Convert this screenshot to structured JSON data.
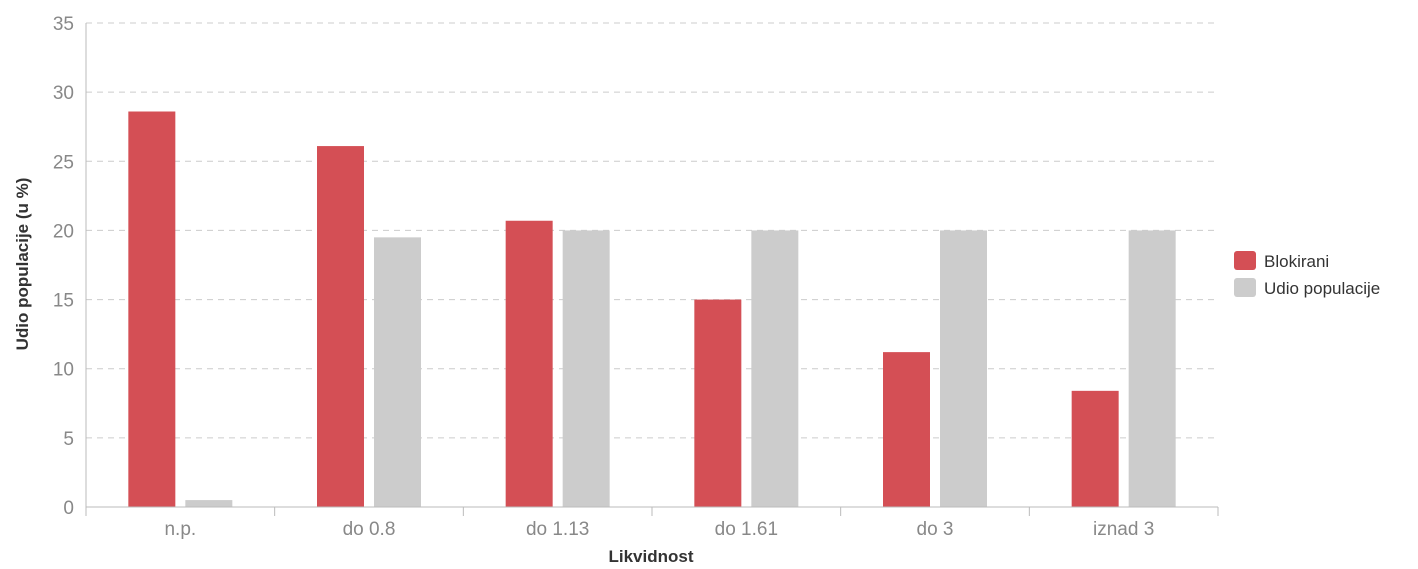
{
  "chart_data": {
    "type": "bar",
    "title": "",
    "xlabel": "Likvidnost",
    "ylabel": "Udio populacije (u %)",
    "categories": [
      "n.p.",
      "do 0.8",
      "do 1.13",
      "do 1.61",
      "do 3",
      "iznad 3"
    ],
    "series": [
      {
        "name": "Blokirani",
        "color": "#d44f55",
        "values": [
          28.6,
          26.1,
          20.7,
          15.0,
          11.2,
          8.4
        ]
      },
      {
        "name": "Udio populacije",
        "color": "#cccccc",
        "values": [
          0.5,
          19.5,
          20.0,
          20.0,
          20.0,
          20.0
        ]
      }
    ],
    "ylim": [
      0,
      35
    ],
    "yticks": [
      "0",
      "5",
      "10",
      "15",
      "20",
      "25",
      "30",
      "35"
    ],
    "grid": true,
    "legend_position": "right"
  }
}
